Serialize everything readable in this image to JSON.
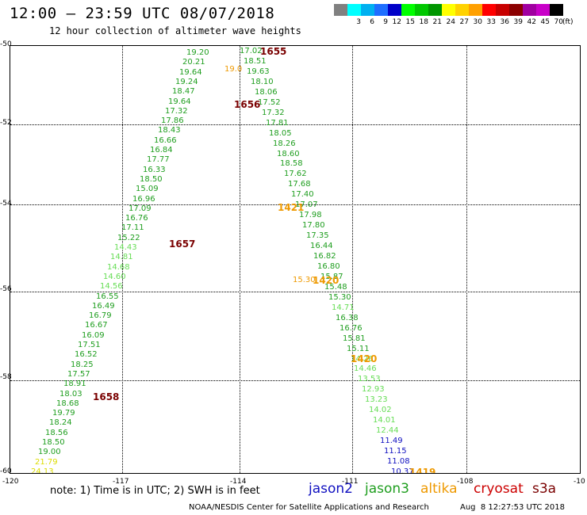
{
  "header": {
    "title": "12:00 – 23:59 UTC 08/07/2018",
    "subtitle": "12 hour collection of altimeter wave heights"
  },
  "legend": {
    "unit": "(ft)",
    "swatches": [
      {
        "label": "",
        "color": "#808080"
      },
      {
        "label": "3",
        "color": "#00ffff"
      },
      {
        "label": "6",
        "color": "#00b0f0"
      },
      {
        "label": "9",
        "color": "#1e6eff"
      },
      {
        "label": "12",
        "color": "#0000c8"
      },
      {
        "label": "15",
        "color": "#00ff00"
      },
      {
        "label": "18",
        "color": "#00c800"
      },
      {
        "label": "21",
        "color": "#009600"
      },
      {
        "label": "24",
        "color": "#ffff00"
      },
      {
        "label": "27",
        "color": "#ffd200"
      },
      {
        "label": "30",
        "color": "#ffa000"
      },
      {
        "label": "33",
        "color": "#ff0000"
      },
      {
        "label": "36",
        "color": "#c80000"
      },
      {
        "label": "39",
        "color": "#8b0000"
      },
      {
        "label": "42",
        "color": "#a000a0"
      },
      {
        "label": "45",
        "color": "#c800c8"
      },
      {
        "label": "70",
        "color": "#000000"
      }
    ]
  },
  "axes": {
    "lat_labels": [
      "-50",
      "-52",
      "-54",
      "-56",
      "-58",
      "-60"
    ],
    "lon_labels": [
      "-120",
      "-117",
      "-114",
      "-111",
      "-108",
      "-10"
    ]
  },
  "colors": {
    "green_dark": "#1f9e1f",
    "green_light": "#66dd55",
    "yellow": "#dcdc00",
    "blue": "#1010c0",
    "orange": "#ee9900",
    "maroon": "#7a0000"
  },
  "track_west": [
    {
      "v": "19.20",
      "c": "green_dark"
    },
    {
      "v": "20.21",
      "c": "green_dark"
    },
    {
      "v": "19.64",
      "c": "green_dark"
    },
    {
      "v": "19.24",
      "c": "green_dark"
    },
    {
      "v": "18.47",
      "c": "green_dark"
    },
    {
      "v": "19.64",
      "c": "green_dark"
    },
    {
      "v": "17.32",
      "c": "green_dark"
    },
    {
      "v": "17.86",
      "c": "green_dark"
    },
    {
      "v": "18.43",
      "c": "green_dark"
    },
    {
      "v": "16.66",
      "c": "green_dark"
    },
    {
      "v": "16.84",
      "c": "green_dark"
    },
    {
      "v": "17.77",
      "c": "green_dark"
    },
    {
      "v": "16.33",
      "c": "green_dark"
    },
    {
      "v": "18.50",
      "c": "green_dark"
    },
    {
      "v": "15.09",
      "c": "green_dark"
    },
    {
      "v": "16.96",
      "c": "green_dark"
    },
    {
      "v": "17.09",
      "c": "green_dark"
    },
    {
      "v": "16.76",
      "c": "green_dark"
    },
    {
      "v": "17.11",
      "c": "green_dark"
    },
    {
      "v": "15.22",
      "c": "green_dark"
    },
    {
      "v": "14.43",
      "c": "green_light"
    },
    {
      "v": "14.81",
      "c": "green_light"
    },
    {
      "v": "14.68",
      "c": "green_light"
    },
    {
      "v": "14.60",
      "c": "green_light"
    },
    {
      "v": "14.56",
      "c": "green_light"
    },
    {
      "v": "16.55",
      "c": "green_dark"
    },
    {
      "v": "16.49",
      "c": "green_dark"
    },
    {
      "v": "16.79",
      "c": "green_dark"
    },
    {
      "v": "16.67",
      "c": "green_dark"
    },
    {
      "v": "16.09",
      "c": "green_dark"
    },
    {
      "v": "17.51",
      "c": "green_dark"
    },
    {
      "v": "16.52",
      "c": "green_dark"
    },
    {
      "v": "18.25",
      "c": "green_dark"
    },
    {
      "v": "17.57",
      "c": "green_dark"
    },
    {
      "v": "18.91",
      "c": "green_dark"
    },
    {
      "v": "18.03",
      "c": "green_dark"
    },
    {
      "v": "18.68",
      "c": "green_dark"
    },
    {
      "v": "19.79",
      "c": "green_dark"
    },
    {
      "v": "18.24",
      "c": "green_dark"
    },
    {
      "v": "18.56",
      "c": "green_dark"
    },
    {
      "v": "18.50",
      "c": "green_dark"
    },
    {
      "v": "19.00",
      "c": "green_dark"
    },
    {
      "v": "21.79",
      "c": "yellow"
    },
    {
      "v": "24.13",
      "c": "yellow"
    }
  ],
  "track_east": [
    {
      "v": "17.02",
      "c": "green_dark"
    },
    {
      "v": "18.51",
      "c": "green_dark"
    },
    {
      "v": "19.63",
      "c": "green_dark"
    },
    {
      "v": "18.10",
      "c": "green_dark"
    },
    {
      "v": "18.06",
      "c": "green_dark"
    },
    {
      "v": "17.52",
      "c": "green_dark"
    },
    {
      "v": "17.32",
      "c": "green_dark"
    },
    {
      "v": "17.81",
      "c": "green_dark"
    },
    {
      "v": "18.05",
      "c": "green_dark"
    },
    {
      "v": "18.26",
      "c": "green_dark"
    },
    {
      "v": "18.60",
      "c": "green_dark"
    },
    {
      "v": "18.58",
      "c": "green_dark"
    },
    {
      "v": "17.62",
      "c": "green_dark"
    },
    {
      "v": "17.68",
      "c": "green_dark"
    },
    {
      "v": "17.40",
      "c": "green_dark"
    },
    {
      "v": "17.07",
      "c": "green_dark"
    },
    {
      "v": "17.98",
      "c": "green_dark"
    },
    {
      "v": "17.80",
      "c": "green_dark"
    },
    {
      "v": "17.35",
      "c": "green_dark"
    },
    {
      "v": "16.44",
      "c": "green_dark"
    },
    {
      "v": "16.82",
      "c": "green_dark"
    },
    {
      "v": "16.80",
      "c": "green_dark"
    },
    {
      "v": "15.87",
      "c": "green_dark"
    },
    {
      "v": "15.48",
      "c": "green_dark"
    },
    {
      "v": "15.30",
      "c": "green_dark"
    },
    {
      "v": "14.71",
      "c": "green_light"
    },
    {
      "v": "16.38",
      "c": "green_dark"
    },
    {
      "v": "16.76",
      "c": "green_dark"
    },
    {
      "v": "15.81",
      "c": "green_dark"
    },
    {
      "v": "15.11",
      "c": "green_dark"
    },
    {
      "v": "14.26",
      "c": "green_light"
    },
    {
      "v": "14.46",
      "c": "green_light"
    },
    {
      "v": "13.53",
      "c": "green_light"
    },
    {
      "v": "12.93",
      "c": "green_light"
    },
    {
      "v": "13.23",
      "c": "green_light"
    },
    {
      "v": "14.02",
      "c": "green_light"
    },
    {
      "v": "14.01",
      "c": "green_light"
    },
    {
      "v": "12.44",
      "c": "green_light"
    },
    {
      "v": "11.49",
      "c": "blue"
    },
    {
      "v": "11.15",
      "c": "blue"
    },
    {
      "v": "11.08",
      "c": "blue"
    },
    {
      "v": "10.37",
      "c": "blue"
    }
  ],
  "extra_obs": [
    {
      "v": "19.0",
      "c": "orange"
    },
    {
      "v": "15.30",
      "c": "orange"
    }
  ],
  "pass_labels": [
    {
      "text": "1655",
      "c": "maroon"
    },
    {
      "text": "1656",
      "c": "maroon"
    },
    {
      "text": "1657",
      "c": "maroon"
    },
    {
      "text": "1658",
      "c": "maroon"
    },
    {
      "text": "1421",
      "c": "orange"
    },
    {
      "text": "1420",
      "c": "orange"
    },
    {
      "text": "1420",
      "c": "orange"
    },
    {
      "text": "1419",
      "c": "orange"
    }
  ],
  "footer": {
    "note": "note: 1) Time is in UTC; 2) SWH is in feet",
    "satellites": [
      {
        "name": "jason2",
        "color": "#1010c0"
      },
      {
        "name": "jason3",
        "color": "#1f9e1f"
      },
      {
        "name": "altika",
        "color": "#ee9900"
      },
      {
        "name": "cryosat",
        "color": "#cc0000"
      },
      {
        "name": "s3a",
        "color": "#7a0000"
      }
    ],
    "credit": "NOAA/NESDIS Center for Satellite Applications and Research",
    "timestamp": "Aug  8 12:27:53 UTC 2018"
  }
}
